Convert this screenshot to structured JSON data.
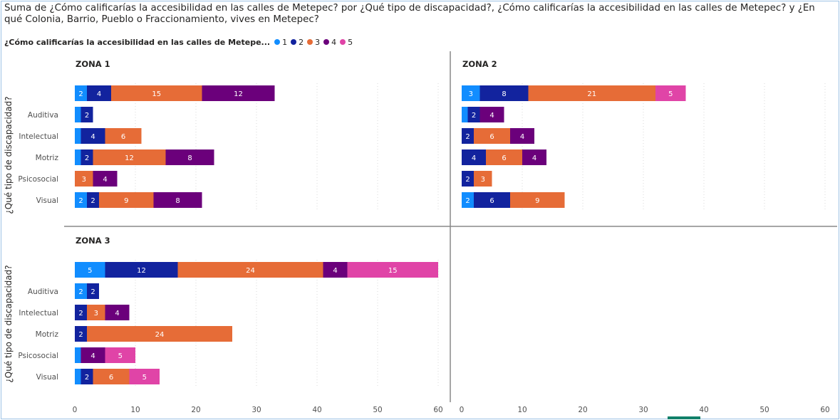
{
  "title": "Suma de ¿Cómo calificarías la accesibilidad en las calles de Metepec? por ¿Qué tipo de discapacidad?, ¿Cómo calificarías la accesibilidad en las calles de Metepec? y ¿En qué Colonia, Barrio, Pueblo o Fraccionamiento, vives en Metepec?",
  "legend": {
    "title": "¿Cómo calificarías la accesibilidad en las calles de Metepe...",
    "items": [
      {
        "label": "1",
        "color": "#118dff"
      },
      {
        "label": "2",
        "color": "#12239e"
      },
      {
        "label": "3",
        "color": "#e66c37"
      },
      {
        "label": "4",
        "color": "#6b007b"
      },
      {
        "label": "5",
        "color": "#e044a7"
      }
    ]
  },
  "chart_data": {
    "type": "bar",
    "orientation": "horizontal",
    "stacked": true,
    "categories": [
      "",
      "Auditiva",
      "Intelectual",
      "Motriz",
      "Psicosocial",
      "Visual"
    ],
    "ylabel": "¿Qué tipo de discapacidad?",
    "xlim": [
      0,
      60
    ],
    "xticks": [
      "0",
      "10",
      "20",
      "30",
      "40",
      "50",
      "60"
    ],
    "grid": true,
    "legend_position": "top-left",
    "panels": [
      {
        "title": "ZONA 1",
        "series": [
          {
            "name": "1",
            "values": [
              2,
              1,
              1,
              1,
              0,
              2
            ]
          },
          {
            "name": "2",
            "values": [
              4,
              2,
              4,
              2,
              0,
              2
            ]
          },
          {
            "name": "3",
            "values": [
              15,
              0,
              6,
              12,
              3,
              9
            ]
          },
          {
            "name": "4",
            "values": [
              12,
              0,
              0,
              8,
              4,
              8
            ]
          },
          {
            "name": "5",
            "values": [
              0,
              0,
              0,
              0,
              0,
              0
            ]
          }
        ]
      },
      {
        "title": "ZONA 2",
        "series": [
          {
            "name": "1",
            "values": [
              3,
              1,
              0,
              0,
              0,
              2
            ]
          },
          {
            "name": "2",
            "values": [
              8,
              2,
              2,
              4,
              2,
              6
            ]
          },
          {
            "name": "3",
            "values": [
              21,
              0,
              6,
              6,
              3,
              9
            ]
          },
          {
            "name": "4",
            "values": [
              0,
              4,
              4,
              4,
              0,
              0
            ]
          },
          {
            "name": "5",
            "values": [
              5,
              0,
              0,
              0,
              0,
              0
            ]
          }
        ]
      },
      {
        "title": "ZONA 3",
        "series": [
          {
            "name": "1",
            "values": [
              5,
              2,
              0,
              0,
              1,
              1
            ]
          },
          {
            "name": "2",
            "values": [
              12,
              2,
              2,
              2,
              0,
              2
            ]
          },
          {
            "name": "3",
            "values": [
              24,
              0,
              3,
              24,
              0,
              6
            ]
          },
          {
            "name": "4",
            "values": [
              4,
              0,
              4,
              0,
              4,
              0
            ]
          },
          {
            "name": "5",
            "values": [
              15,
              0,
              0,
              0,
              5,
              5
            ]
          }
        ]
      }
    ]
  }
}
